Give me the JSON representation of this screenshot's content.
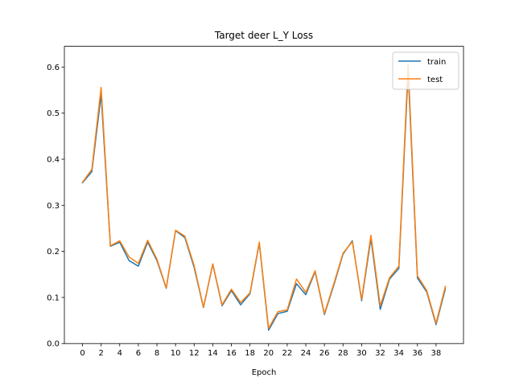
{
  "chart_data": {
    "type": "line",
    "title": "Target deer L_Y Loss",
    "xlabel": "Epoch",
    "ylabel": "",
    "xlim": [
      -1.95,
      40.95
    ],
    "ylim": [
      0.0,
      0.645
    ],
    "xticks": [
      0,
      2,
      4,
      6,
      8,
      10,
      12,
      14,
      16,
      18,
      20,
      22,
      24,
      26,
      28,
      30,
      32,
      34,
      36,
      38
    ],
    "yticks": [
      0.0,
      0.1,
      0.2,
      0.3,
      0.4,
      0.5,
      0.6
    ],
    "ytick_labels": [
      "0.0",
      "0.1",
      "0.2",
      "0.3",
      "0.4",
      "0.5",
      "0.6"
    ],
    "legend_position": "top-right",
    "grid": false,
    "x": [
      0,
      1,
      2,
      3,
      4,
      5,
      6,
      7,
      8,
      9,
      10,
      11,
      12,
      13,
      14,
      15,
      16,
      17,
      18,
      19,
      20,
      21,
      22,
      23,
      24,
      25,
      26,
      27,
      28,
      29,
      30,
      31,
      32,
      33,
      34,
      35,
      36,
      37,
      38,
      39
    ],
    "series": [
      {
        "name": "train",
        "color": "#1f77b4",
        "values": [
          0.349,
          0.373,
          0.54,
          0.211,
          0.22,
          0.18,
          0.168,
          0.22,
          0.18,
          0.12,
          0.245,
          0.23,
          0.165,
          0.078,
          0.172,
          0.082,
          0.115,
          0.084,
          0.108,
          0.218,
          0.029,
          0.065,
          0.07,
          0.13,
          0.106,
          0.156,
          0.063,
          0.126,
          0.194,
          0.223,
          0.093,
          0.228,
          0.074,
          0.14,
          0.163,
          0.59,
          0.142,
          0.112,
          0.041,
          0.119
        ]
      },
      {
        "name": "test",
        "color": "#ff7f0e",
        "values": [
          0.35,
          0.378,
          0.556,
          0.212,
          0.223,
          0.188,
          0.174,
          0.224,
          0.183,
          0.121,
          0.246,
          0.233,
          0.169,
          0.079,
          0.173,
          0.084,
          0.118,
          0.089,
          0.11,
          0.22,
          0.033,
          0.069,
          0.073,
          0.14,
          0.111,
          0.158,
          0.065,
          0.129,
          0.196,
          0.221,
          0.096,
          0.235,
          0.082,
          0.143,
          0.168,
          0.605,
          0.147,
          0.115,
          0.044,
          0.124
        ]
      }
    ]
  }
}
